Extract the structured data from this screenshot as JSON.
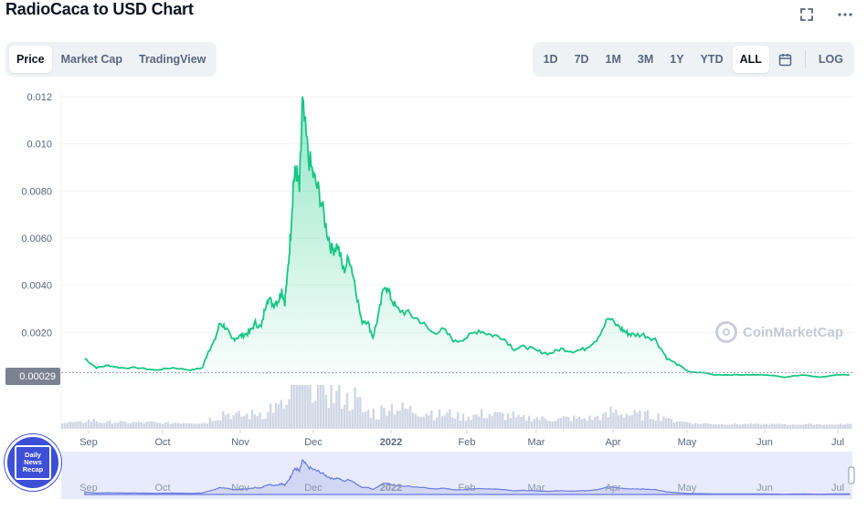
{
  "header": {
    "title": "RadioCaca to USD Chart",
    "fullscreen_icon": "expand-icon",
    "more_icon": "more-horizontal-icon"
  },
  "left_tabs": [
    {
      "label": "Price",
      "active": true
    },
    {
      "label": "Market Cap",
      "active": false
    },
    {
      "label": "TradingView",
      "active": false
    }
  ],
  "range_tabs": [
    {
      "label": "1D",
      "active": false
    },
    {
      "label": "7D",
      "active": false
    },
    {
      "label": "1M",
      "active": false
    },
    {
      "label": "3M",
      "active": false
    },
    {
      "label": "1Y",
      "active": false
    },
    {
      "label": "YTD",
      "active": false
    },
    {
      "label": "ALL",
      "active": true
    }
  ],
  "calendar_icon": "calendar-icon",
  "log_label": "LOG",
  "current_price_label": "0.00029",
  "watermark": "CoinMarketCap",
  "badge": {
    "line1": "Daily",
    "line2": "News",
    "line3": "Recap"
  },
  "colors": {
    "line": "#16c784",
    "fill_top": "#16c784",
    "volume": "#cfd6e4",
    "navigator": "#6b7ae0",
    "navigator_bg": "#e8ebfb"
  },
  "chart_data": {
    "type": "area",
    "x_unit": "month index from start of Aug 2021 (8 = Sep 2021, 13 = Jan 2022)",
    "ylim": [
      0,
      0.012
    ],
    "yticks": [
      "0.012",
      "0.010",
      "0.0080",
      "0.0060",
      "0.0040",
      "0.0020"
    ],
    "yticks_values": [
      0.012,
      0.01,
      0.008,
      0.006,
      0.004,
      0.002
    ],
    "xticks": [
      {
        "label": "Sep",
        "bold": false
      },
      {
        "label": "Oct",
        "bold": false
      },
      {
        "label": "Nov",
        "bold": false
      },
      {
        "label": "Dec",
        "bold": false
      },
      {
        "label": "2022",
        "bold": true
      },
      {
        "label": "Feb",
        "bold": false
      },
      {
        "label": "Mar",
        "bold": false
      },
      {
        "label": "Apr",
        "bold": false
      },
      {
        "label": "May",
        "bold": false
      },
      {
        "label": "Jun",
        "bold": false
      },
      {
        "label": "Jul",
        "bold": false
      }
    ],
    "series": [
      {
        "name": "Price",
        "x": [
          8.0,
          8.2,
          8.4,
          8.6,
          8.9,
          9.2,
          9.5,
          9.8,
          10.0,
          10.1,
          10.2,
          10.3,
          10.4,
          10.5,
          10.6,
          10.7,
          10.8,
          10.9,
          11.0,
          11.1,
          11.2,
          11.3,
          11.35,
          11.4,
          11.45,
          11.5,
          11.55,
          11.6,
          11.65,
          11.7,
          11.8,
          11.9,
          12.0,
          12.1,
          12.2,
          12.3,
          12.4,
          12.5,
          12.6,
          12.7,
          12.8,
          12.9,
          13.0,
          13.1,
          13.2,
          13.3,
          13.5,
          13.7,
          13.9,
          14.1,
          14.3,
          14.5,
          14.7,
          14.9,
          15.1,
          15.3,
          15.5,
          15.7,
          15.9,
          16.1,
          16.3,
          16.5,
          16.7,
          16.9,
          17.1,
          17.2,
          17.3,
          17.5,
          17.7,
          17.9,
          18.1,
          18.3,
          18.5,
          18.7,
          19.0,
          19.3,
          19.6,
          19.9,
          20.2,
          20.5,
          20.8,
          21.0
        ],
        "values": [
          0.0009,
          0.0005,
          0.0006,
          0.0005,
          0.0005,
          0.0004,
          0.0005,
          0.0004,
          0.0005,
          0.0012,
          0.0016,
          0.0024,
          0.0022,
          0.0017,
          0.0018,
          0.0019,
          0.002,
          0.0024,
          0.0022,
          0.0035,
          0.0032,
          0.0034,
          0.0038,
          0.0033,
          0.0045,
          0.0062,
          0.0085,
          0.0088,
          0.008,
          0.0116,
          0.0095,
          0.0085,
          0.0078,
          0.0065,
          0.0055,
          0.0057,
          0.0046,
          0.0052,
          0.004,
          0.0025,
          0.0025,
          0.0018,
          0.0028,
          0.0041,
          0.0035,
          0.003,
          0.0028,
          0.0025,
          0.002,
          0.0021,
          0.0016,
          0.0018,
          0.0021,
          0.0019,
          0.0018,
          0.0013,
          0.0014,
          0.0012,
          0.0011,
          0.0013,
          0.0012,
          0.0013,
          0.0017,
          0.0026,
          0.0022,
          0.002,
          0.0019,
          0.0019,
          0.0017,
          0.0009,
          0.0006,
          0.0003,
          0.0003,
          0.0002,
          0.0002,
          0.0002,
          0.0002,
          0.0001,
          0.0002,
          0.0001,
          0.0002,
          0.0002
        ]
      }
    ],
    "current_value": 0.00029
  }
}
